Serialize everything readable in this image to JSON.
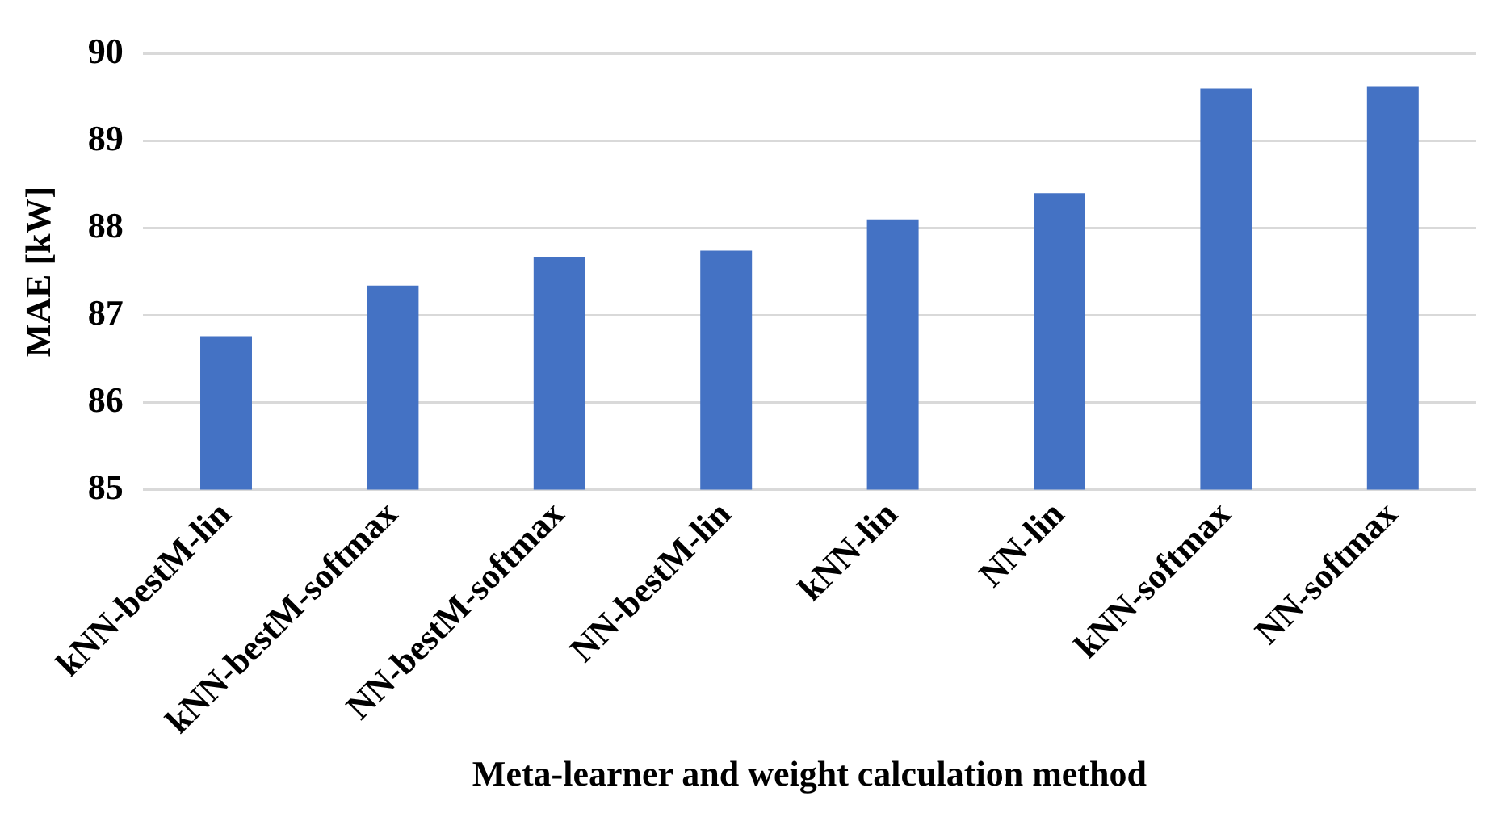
{
  "chart_data": {
    "type": "bar",
    "xlabel": "Meta-learner and weight calculation method",
    "ylabel": "MAE [kW]",
    "categories": [
      "kNN-bestM-lin",
      "kNN-bestM-softmax",
      "NN-bestM-softmax",
      "NN-bestM-lin",
      "kNN-lin",
      "NN-lin",
      "kNN-softmax",
      "NN-softmax"
    ],
    "values": [
      86.76,
      87.34,
      87.67,
      87.74,
      88.1,
      88.4,
      89.6,
      89.62
    ],
    "color": "#4472c4",
    "ylim": [
      85,
      90
    ],
    "yticks": [
      85,
      86,
      87,
      88,
      89,
      90
    ],
    "grid": "y",
    "legend": false
  }
}
